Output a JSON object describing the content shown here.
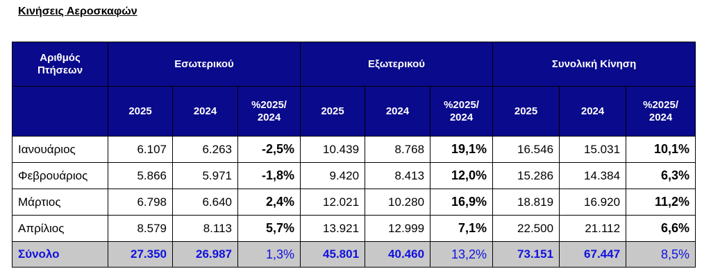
{
  "title": "Κινήσεις Αεροσκαφών",
  "header": {
    "corner": "Αριθμός Πτήσεων",
    "groups": [
      "Εσωτερικού",
      "Εξωτερικού",
      "Συνολική Κίνηση"
    ],
    "subcolumns": [
      "2025",
      "2024",
      "%2025/ 2024"
    ]
  },
  "rows": [
    {
      "month": "Ιανουάριος",
      "cells": [
        "6.107",
        "6.263",
        "-2,5%",
        "10.439",
        "8.768",
        "19,1%",
        "16.546",
        "15.031",
        "10,1%"
      ]
    },
    {
      "month": "Φεβρουάριος",
      "cells": [
        "5.866",
        "5.971",
        "-1,8%",
        "9.420",
        "8.413",
        "12,0%",
        "15.286",
        "14.384",
        "6,3%"
      ]
    },
    {
      "month": "Μάρτιος",
      "cells": [
        "6.798",
        "6.640",
        "2,4%",
        "12.021",
        "10.280",
        "16,9%",
        "18.819",
        "16.920",
        "11,2%"
      ]
    },
    {
      "month": "Απρίλιος",
      "cells": [
        "8.579",
        "8.113",
        "5,7%",
        "13.921",
        "12.999",
        "7,1%",
        "22.500",
        "21.112",
        "6,6%"
      ]
    }
  ],
  "total": {
    "label": "Σύνολο",
    "cells": [
      "27.350",
      "26.987",
      "1,3%",
      "45.801",
      "40.460",
      "13,2%",
      "73.151",
      "67.447",
      "8,5%"
    ]
  },
  "colors": {
    "header_bg": "#0a0a8c",
    "header_text": "#ffffff",
    "total_bg": "#c8c8c8",
    "total_text": "#1010e0"
  }
}
